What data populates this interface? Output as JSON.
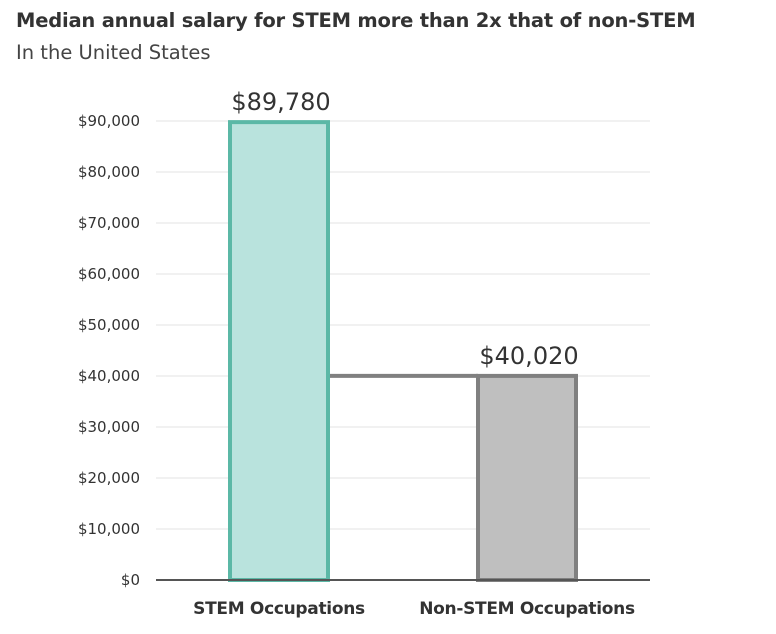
{
  "chart_data": {
    "type": "bar",
    "title": "Median annual salary for STEM more than 2x that of non-STEM",
    "subtitle": "In the United States",
    "categories": [
      "STEM Occupations",
      "Non-STEM Occupations"
    ],
    "values": [
      89780,
      40020
    ],
    "value_labels": [
      "$89,780",
      "$40,020"
    ],
    "ylim": [
      0,
      90000
    ],
    "yticks": [
      0,
      10000,
      20000,
      30000,
      40000,
      50000,
      60000,
      70000,
      80000,
      90000
    ],
    "ytick_labels": [
      "$0",
      "$10,000",
      "$20,000",
      "$30,000",
      "$40,000",
      "$50,000",
      "$60,000",
      "$70,000",
      "$80,000",
      "$90,000"
    ],
    "grid": true,
    "legend": "none",
    "colors": {
      "stem_fill": "#b9e3dd",
      "stem_stroke": "#5bb8a6",
      "nonstem_fill": "#bfbfbf",
      "nonstem_stroke": "#808080",
      "connector": "#808080",
      "grid": "#e3e3e3",
      "baseline": "#555555"
    }
  }
}
